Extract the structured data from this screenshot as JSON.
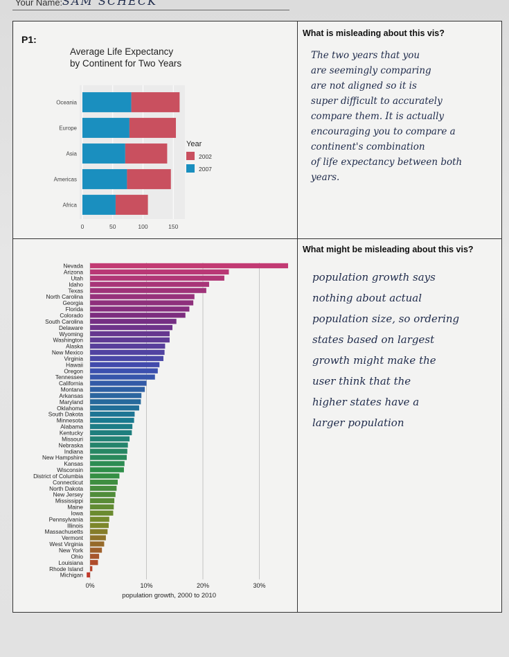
{
  "form": {
    "name_prefix": "Your Name:",
    "name_value": "SAM SCHECK"
  },
  "panel1": {
    "label": "P1:",
    "question": "What is misleading about this vis?",
    "answer_lines": [
      "The two years that you",
      "are seemingly comparing",
      "are not aligned so it is",
      "super difficult to accurately",
      "compare them. It is actually",
      "encouraging you to compare a",
      "continent's combination",
      "of life expectancy between both",
      "years."
    ]
  },
  "panel2": {
    "question": "What might be misleading about this vis?",
    "answer_lines": [
      "population growth says",
      "nothing about actual",
      "population size, so ordering",
      "states based on largest",
      "growth might make the",
      "user think that the",
      "higher states have a",
      "larger population"
    ]
  },
  "chart_data": [
    {
      "type": "bar",
      "orientation": "horizontal",
      "stacked": true,
      "title": "Average Life Expectancy by Continent for Two Years",
      "title_lines": [
        "Average Life Expectancy",
        "by Continent for Two Years"
      ],
      "xlabel": "Average Life Expectancy",
      "ylabel": "",
      "categories": [
        "Oceania",
        "Europe",
        "Asia",
        "Americas",
        "Africa"
      ],
      "series": [
        {
          "name": "2007",
          "color": "#1a8fbf",
          "values": [
            80.7,
            77.6,
            70.7,
            73.6,
            54.8
          ]
        },
        {
          "name": "2002",
          "color": "#c9505f",
          "values": [
            79.7,
            76.7,
            69.2,
            72.4,
            53.3
          ]
        }
      ],
      "xlim": [
        0,
        160
      ],
      "xticks": [
        "0",
        "50",
        "100",
        "150"
      ],
      "legend": {
        "title": "Year",
        "entries": [
          "2002",
          "2007"
        ],
        "position": "right"
      },
      "grid": true
    },
    {
      "type": "bar",
      "orientation": "horizontal",
      "title": "",
      "xlabel": "population growth, 2000 to 2010",
      "ylabel": "",
      "categories": [
        "Nevada",
        "Arizona",
        "Utah",
        "Idaho",
        "Texas",
        "North Carolina",
        "Georgia",
        "Florida",
        "Colorado",
        "South Carolina",
        "Delaware",
        "Wyoming",
        "Washington",
        "Alaska",
        "New Mexico",
        "Virginia",
        "Hawaii",
        "Oregon",
        "Tennessee",
        "California",
        "Montana",
        "Arkansas",
        "Maryland",
        "Oklahoma",
        "South Dakota",
        "Minnesota",
        "Alabama",
        "Kentucky",
        "Missouri",
        "Nebraska",
        "Indiana",
        "New Hampshire",
        "Kansas",
        "Wisconsin",
        "District of Columbia",
        "Connecticut",
        "North Dakota",
        "New Jersey",
        "Mississippi",
        "Maine",
        "Iowa",
        "Pennsylvania",
        "Illinois",
        "Massachusetts",
        "Vermont",
        "West Virginia",
        "New York",
        "Ohio",
        "Louisiana",
        "Rhode Island",
        "Michigan"
      ],
      "values": [
        35.1,
        24.6,
        23.8,
        21.1,
        20.6,
        18.5,
        18.3,
        17.6,
        16.9,
        15.3,
        14.6,
        14.1,
        14.1,
        13.3,
        13.2,
        13.0,
        12.3,
        12.0,
        11.5,
        10.0,
        9.7,
        9.1,
        9.0,
        8.7,
        7.9,
        7.8,
        7.5,
        7.4,
        7.0,
        6.7,
        6.6,
        6.5,
        6.1,
        6.0,
        5.2,
        4.9,
        4.7,
        4.5,
        4.3,
        4.2,
        4.1,
        3.4,
        3.3,
        3.1,
        2.8,
        2.5,
        2.1,
        1.6,
        1.4,
        0.4,
        -0.6
      ],
      "xlim": [
        -0.5,
        35.1
      ],
      "xticks": [
        "0%",
        "10%",
        "20%",
        "30%"
      ],
      "xtick_values": [
        0,
        10,
        20,
        30
      ],
      "colors": {
        "top": "#c23a73",
        "upper_mid": "#7a2c80",
        "mid": "#3d4eb0",
        "lower_mid": "#1a7a90",
        "green": "#2f8f46",
        "olive": "#7a8a2a",
        "bottom": "#c0392b"
      },
      "grid": true
    }
  ]
}
